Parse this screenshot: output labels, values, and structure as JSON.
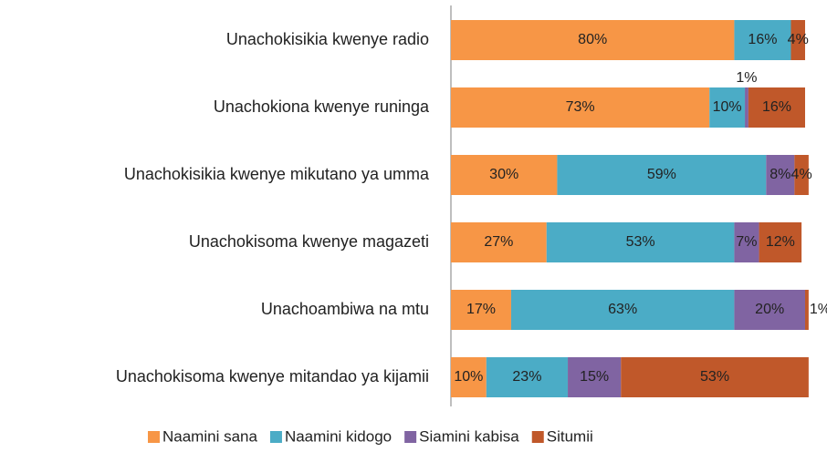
{
  "chart_data": {
    "type": "stacked_bar_horizontal",
    "categories": [
      "Unachokisikia kwenye radio",
      "Unachokiona kwenye runinga",
      "Unachokisikia kwenye mikutano ya umma",
      "Unachokisoma kwenye magazeti",
      "Unachoambiwa na mtu",
      "Unachokisoma kwenye mitandao ya kijamii"
    ],
    "xlim": [
      0,
      100
    ],
    "series": [
      {
        "name": "Naamini sana",
        "color": "#f79646",
        "values": [
          80,
          73,
          30,
          27,
          17,
          10
        ],
        "value_labels": [
          "80%",
          "73%",
          "30%",
          "27%",
          "17%",
          "10%"
        ]
      },
      {
        "name": "Naamini kidogo",
        "color": "#4bacc6",
        "values": [
          16,
          10,
          59,
          53,
          63,
          23
        ],
        "value_labels": [
          "16%",
          "10%",
          "59%",
          "53%",
          "63%",
          "23%"
        ]
      },
      {
        "name": "Siamini kabisa",
        "color": "#8064a2",
        "values": [
          null,
          1,
          8,
          7,
          20,
          15
        ],
        "value_labels": [
          null,
          "1%",
          "8%",
          "7%",
          "20%",
          "15%"
        ]
      },
      {
        "name": "Situmii",
        "color": "#c0582a",
        "values": [
          4,
          16,
          4,
          12,
          1,
          53
        ],
        "value_labels": [
          "4%",
          "16%",
          "4%",
          "12%",
          "1%",
          "53%"
        ]
      }
    ],
    "legend": "bottom"
  }
}
